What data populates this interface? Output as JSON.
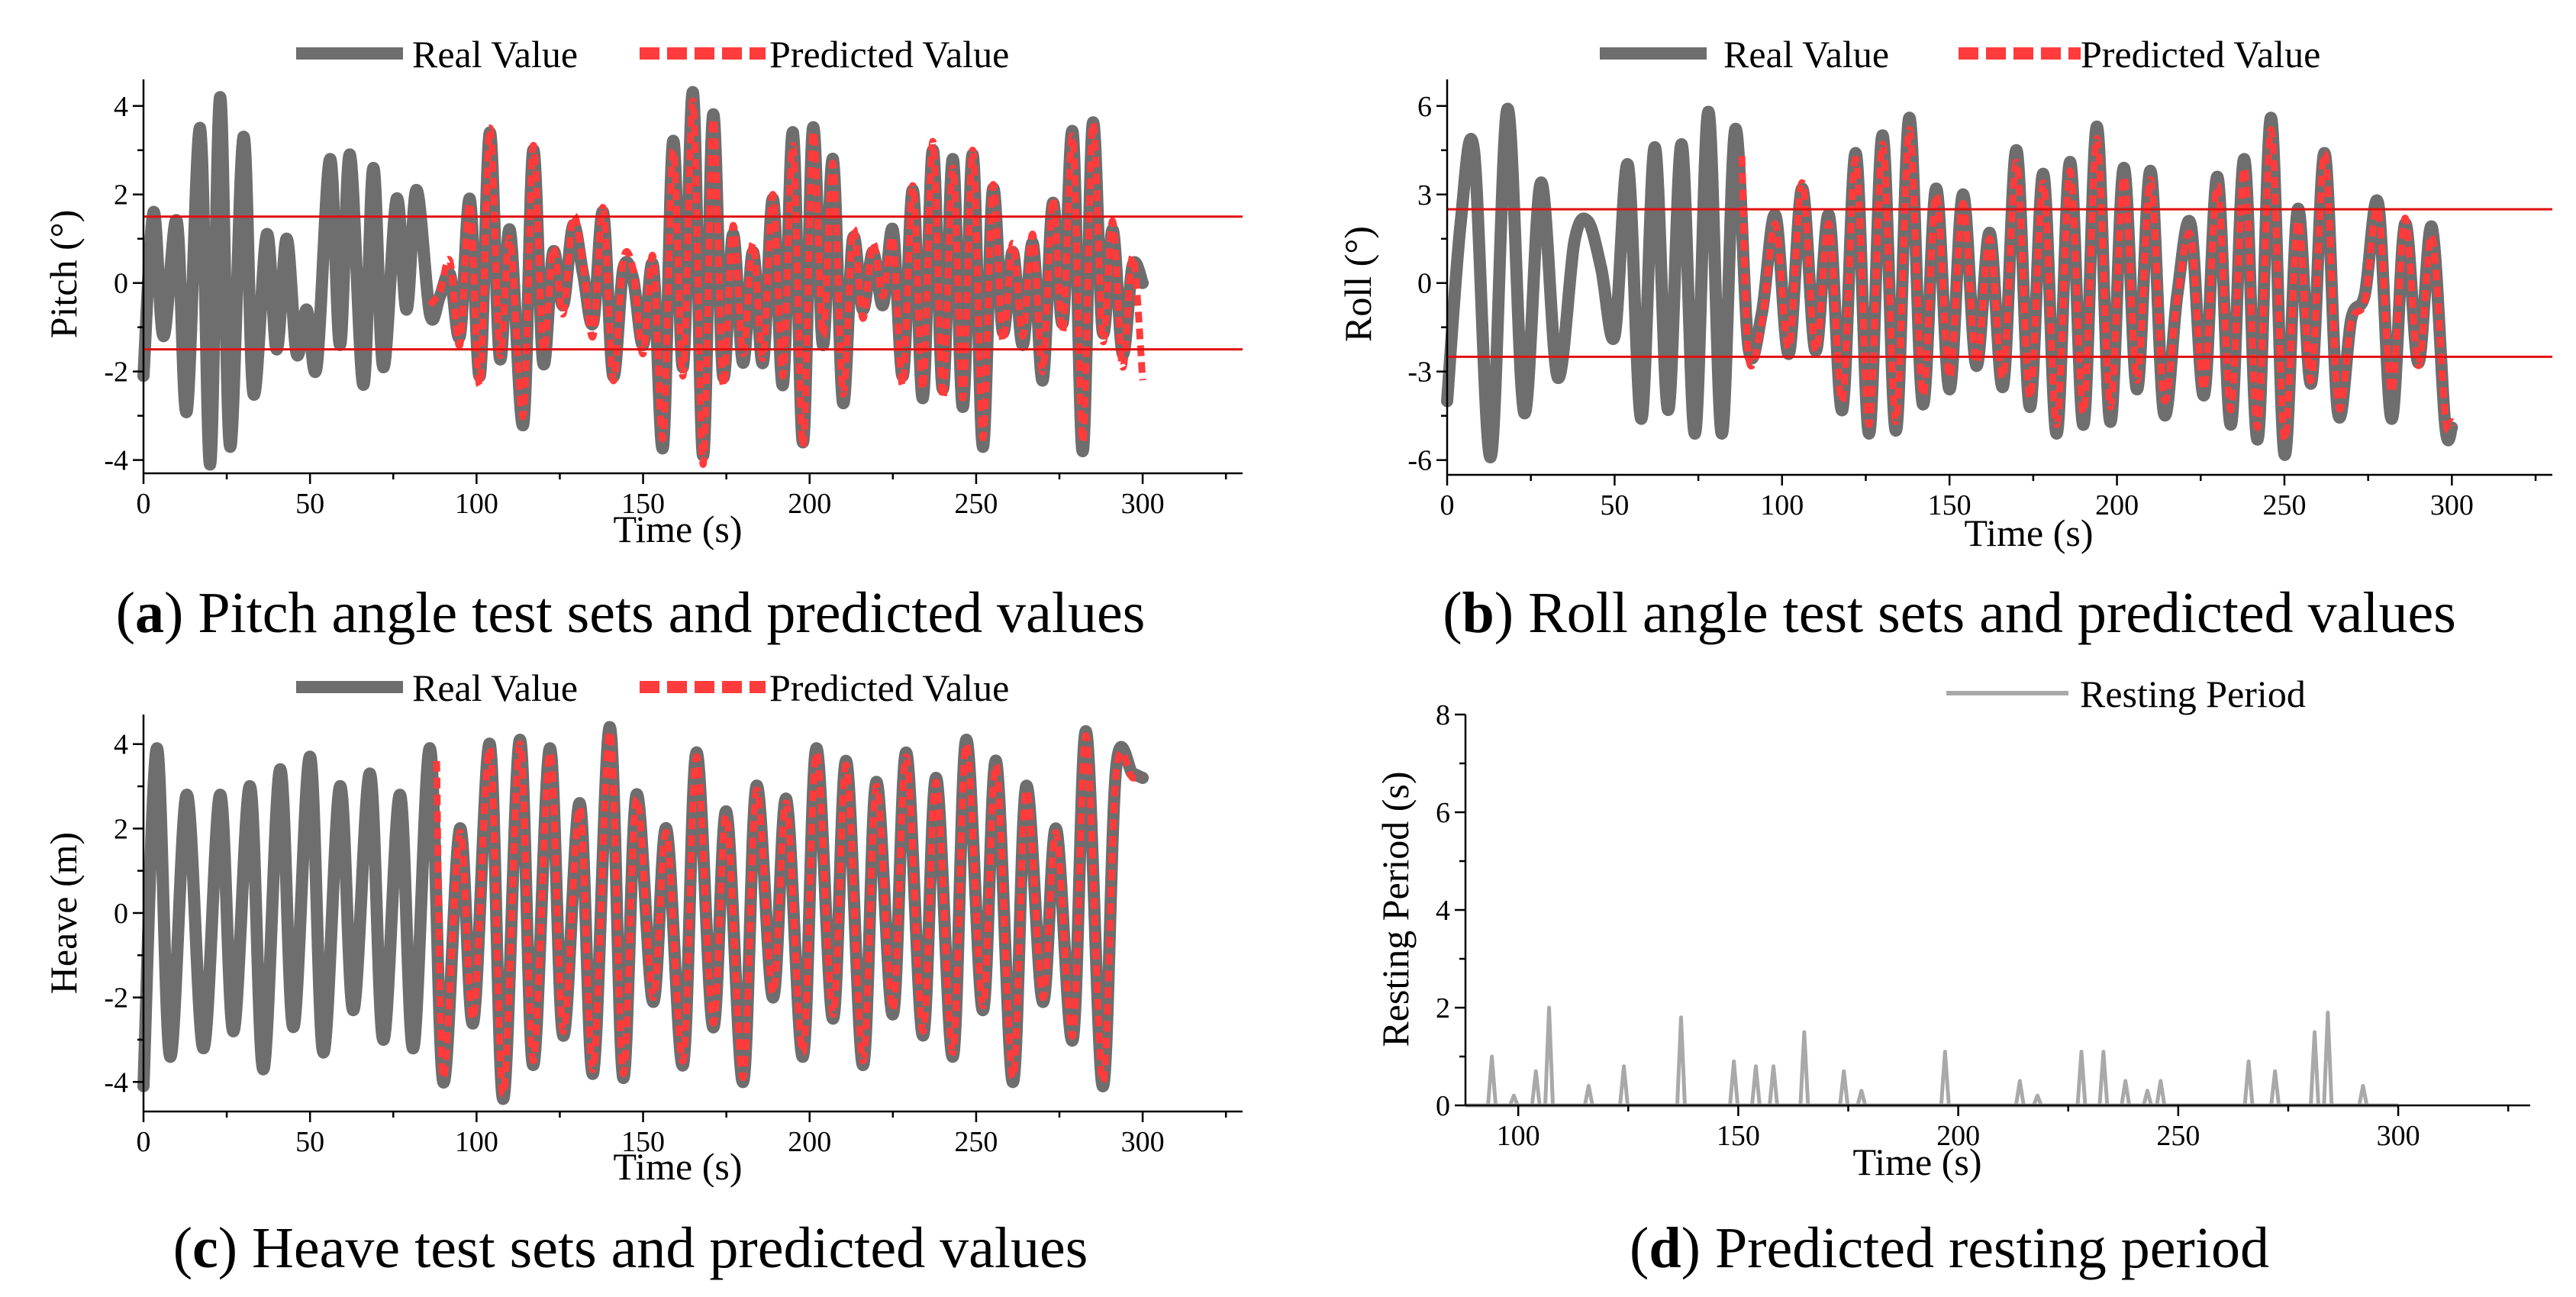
{
  "colors": {
    "real": "#6e6e6e",
    "pred": "#ff3b3b",
    "thresh": "#e01010",
    "rest": "#a9a9a9",
    "axis": "#000000"
  },
  "chart_data": [
    {
      "id": "pitch",
      "type": "line",
      "caption": {
        "letter": "a",
        "text": "Pitch angle test sets and predicted values"
      },
      "xlabel": "Time (s)",
      "ylabel": "Pitch (°)",
      "xlim": [
        0,
        330
      ],
      "ylim": [
        -4.3,
        4.6
      ],
      "xticks": [
        0,
        50,
        100,
        150,
        200,
        250,
        300
      ],
      "yticks": [
        -4,
        -2,
        0,
        2,
        4
      ],
      "thresholds": [
        1.5,
        -1.5
      ],
      "legend": [
        "Real Value",
        "Predicted Value"
      ],
      "pred_start": 85,
      "series": [
        {
          "name": "Real Value",
          "t": [
            0,
            3,
            6,
            10,
            13,
            17,
            20,
            23,
            26,
            30,
            33,
            37,
            40,
            43,
            46,
            49,
            52,
            56,
            59,
            62,
            66,
            69,
            72,
            76,
            79,
            82,
            86,
            89,
            92,
            95,
            98,
            101,
            104,
            107,
            110,
            114,
            117,
            120,
            123,
            126,
            129,
            132,
            135,
            138,
            141,
            144,
            147,
            150,
            153,
            156,
            159,
            162,
            165,
            168,
            171,
            174,
            177,
            180,
            183,
            186,
            189,
            192,
            195,
            198,
            201,
            204,
            207,
            210,
            213,
            216,
            219,
            222,
            225,
            228,
            231,
            234,
            237,
            240,
            243,
            246,
            249,
            252,
            255,
            258,
            261,
            264,
            267,
            270,
            273,
            276,
            279,
            282,
            285,
            288,
            291,
            294,
            297,
            300
          ],
          "v": [
            -2.1,
            1.6,
            -1.2,
            1.4,
            -2.9,
            3.5,
            -4.1,
            4.2,
            -3.7,
            3.3,
            -2.5,
            1.1,
            -1.5,
            1.0,
            -1.6,
            -0.6,
            -1.9,
            2.8,
            -1.4,
            2.9,
            -2.3,
            2.6,
            -1.9,
            1.9,
            -0.6,
            2.1,
            -0.7,
            -0.3,
            0.2,
            -1.2,
            1.9,
            -2.1,
            3.4,
            -1.7,
            1.2,
            -3.2,
            3.0,
            -1.8,
            0.7,
            -0.5,
            1.3,
            0.2,
            -0.9,
            1.6,
            -2.1,
            0.3,
            0.1,
            -1.4,
            0.4,
            -3.7,
            3.2,
            -1.9,
            4.3,
            -3.9,
            3.8,
            -2.1,
            1.1,
            -1.8,
            0.7,
            -1.8,
            1.9,
            -2.3,
            3.4,
            -3.6,
            3.5,
            -1.4,
            2.8,
            -2.7,
            1.0,
            -0.6,
            0.7,
            -0.5,
            1.2,
            -2.1,
            2.1,
            -2.6,
            3.0,
            -2.4,
            2.8,
            -2.8,
            2.9,
            -3.7,
            2.1,
            -1.1,
            0.7,
            -1.4,
            0.9,
            -2.2,
            1.8,
            -0.9,
            3.4,
            -3.8,
            3.6,
            -1.1,
            1.2,
            -1.6,
            0.4,
            0.0
          ]
        },
        {
          "name": "Predicted Value",
          "t": [
            86,
            89,
            92,
            95,
            98,
            101,
            104,
            107,
            110,
            114,
            117,
            120,
            123,
            126,
            129,
            132,
            135,
            138,
            141,
            144,
            147,
            150,
            153,
            156,
            159,
            162,
            165,
            168,
            171,
            174,
            177,
            180,
            183,
            186,
            189,
            192,
            195,
            198,
            201,
            204,
            207,
            210,
            213,
            216,
            219,
            222,
            225,
            228,
            231,
            234,
            237,
            240,
            243,
            246,
            249,
            252,
            255,
            258,
            261,
            264,
            267,
            270,
            273,
            276,
            279,
            282,
            285,
            288,
            291,
            294,
            297,
            300
          ],
          "v": [
            -0.5,
            -0.2,
            0.5,
            -1.4,
            1.8,
            -2.3,
            3.5,
            -1.6,
            1.0,
            -3.0,
            3.1,
            -1.5,
            0.8,
            -0.7,
            1.5,
            0.4,
            -1.2,
            1.7,
            -2.2,
            0.5,
            0.3,
            -1.6,
            0.6,
            -3.5,
            3.0,
            -2.1,
            4.1,
            -4.1,
            3.7,
            -2.3,
            1.3,
            -1.6,
            0.9,
            -1.7,
            2.0,
            -2.1,
            3.1,
            -3.7,
            3.4,
            -1.2,
            2.7,
            -2.5,
            1.2,
            -0.8,
            0.9,
            -0.3,
            1.0,
            -2.3,
            2.2,
            -2.4,
            3.2,
            -2.6,
            2.6,
            -2.6,
            3.0,
            -3.5,
            2.2,
            -1.3,
            0.9,
            -1.2,
            1.1,
            -2.0,
            1.9,
            -1.1,
            3.3,
            -3.6,
            3.6,
            -1.3,
            1.4,
            -1.9,
            0.6,
            -2.2
          ]
        }
      ]
    },
    {
      "id": "roll",
      "type": "line",
      "caption": {
        "letter": "b",
        "text": "Roll angle test sets and predicted values"
      },
      "xlabel": "Time (s)",
      "ylabel": "Roll (°)",
      "xlim": [
        0,
        330
      ],
      "ylim": [
        -6.5,
        6.9
      ],
      "xticks": [
        0,
        50,
        100,
        150,
        200,
        250,
        300
      ],
      "yticks": [
        -6,
        -3,
        0,
        3,
        6
      ],
      "thresholds": [
        2.5,
        -2.5
      ],
      "legend": [
        "Real Value",
        "Predicted Value"
      ],
      "pred_start": 88,
      "series": [
        {
          "name": "Real Value",
          "t": [
            0,
            4,
            8,
            13,
            18,
            23,
            28,
            33,
            38,
            42,
            46,
            50,
            54,
            58,
            62,
            66,
            70,
            74,
            78,
            82,
            86,
            90,
            94,
            98,
            102,
            106,
            110,
            114,
            118,
            122,
            126,
            130,
            134,
            138,
            142,
            146,
            150,
            154,
            158,
            162,
            166,
            170,
            174,
            178,
            182,
            186,
            190,
            194,
            198,
            202,
            206,
            210,
            214,
            218,
            222,
            226,
            230,
            234,
            238,
            242,
            246,
            250,
            254,
            258,
            262,
            266,
            270,
            274,
            278,
            282,
            286,
            290,
            294,
            298,
            300
          ],
          "v": [
            -4.0,
            2.0,
            4.5,
            -5.9,
            5.9,
            -4.4,
            3.4,
            -3.2,
            1.4,
            2.1,
            0.5,
            -1.8,
            4.0,
            -4.6,
            4.6,
            -4.3,
            4.7,
            -5.1,
            5.8,
            -5.1,
            5.2,
            -2.2,
            -1.0,
            2.3,
            -2.4,
            3.2,
            -2.3,
            2.3,
            -4.3,
            4.4,
            -5.1,
            5.0,
            -5.0,
            5.6,
            -4.1,
            3.2,
            -3.6,
            3.0,
            -2.8,
            1.7,
            -3.5,
            4.5,
            -4.2,
            3.7,
            -5.1,
            4.1,
            -4.8,
            5.3,
            -4.7,
            3.9,
            -3.6,
            3.8,
            -4.4,
            -0.4,
            2.0,
            -3.8,
            3.6,
            -4.8,
            4.2,
            -5.3,
            5.6,
            -5.8,
            2.5,
            -3.4,
            4.4,
            -4.4,
            -1.2,
            -0.4,
            2.7,
            -4.6,
            2.0,
            -2.7,
            1.9,
            -4.8,
            -4.9
          ]
        },
        {
          "name": "Predicted Value",
          "t": [
            88,
            90,
            94,
            98,
            102,
            106,
            110,
            114,
            118,
            122,
            126,
            130,
            134,
            138,
            142,
            146,
            150,
            154,
            158,
            162,
            166,
            170,
            174,
            178,
            182,
            186,
            190,
            194,
            198,
            202,
            206,
            210,
            214,
            218,
            222,
            226,
            230,
            234,
            238,
            242,
            246,
            250,
            254,
            258,
            262,
            266,
            270,
            274,
            278,
            282,
            286,
            290,
            294,
            298,
            300
          ],
          "v": [
            4.3,
            -2.5,
            -1.3,
            2.0,
            -2.2,
            3.4,
            -2.3,
            2.0,
            -4.0,
            4.2,
            -4.8,
            4.7,
            -4.7,
            5.2,
            -3.8,
            3.0,
            -3.2,
            2.7,
            -2.7,
            1.5,
            -3.2,
            4.1,
            -3.9,
            3.4,
            -4.8,
            3.8,
            -4.4,
            4.9,
            -4.2,
            3.6,
            -3.3,
            3.5,
            -3.9,
            -0.5,
            1.6,
            -3.6,
            3.3,
            -4.3,
            3.9,
            -4.9,
            5.2,
            -5.3,
            2.1,
            -3.3,
            4.4,
            -4.1,
            -1.3,
            -0.6,
            2.5,
            -3.7,
            2.2,
            -2.8,
            1.6,
            -4.5,
            -4.7
          ]
        }
      ]
    },
    {
      "id": "heave",
      "type": "line",
      "caption": {
        "letter": "c",
        "text": "Heave test sets and predicted values"
      },
      "xlabel": "Time (s)",
      "ylabel": "Heave (m)",
      "xlim": [
        0,
        330
      ],
      "ylim": [
        -4.7,
        4.7
      ],
      "xticks": [
        0,
        50,
        100,
        150,
        200,
        250,
        300
      ],
      "yticks": [
        -4,
        -2,
        0,
        2,
        4
      ],
      "legend": [
        "Real Value",
        "Predicted Value"
      ],
      "pred_start": 87,
      "series": [
        {
          "name": "Real Value",
          "t": [
            0,
            4,
            8,
            13,
            18,
            23,
            27,
            32,
            36,
            41,
            45,
            50,
            54,
            59,
            63,
            68,
            72,
            77,
            81,
            86,
            90,
            95,
            99,
            104,
            108,
            113,
            117,
            122,
            126,
            131,
            135,
            140,
            144,
            148,
            153,
            157,
            162,
            166,
            171,
            175,
            180,
            184,
            189,
            193,
            198,
            202,
            207,
            211,
            216,
            220,
            225,
            229,
            234,
            238,
            243,
            247,
            252,
            256,
            261,
            265,
            270,
            274,
            279,
            283,
            288,
            292,
            297,
            300
          ],
          "v": [
            -4.1,
            3.9,
            -3.4,
            2.8,
            -3.2,
            2.8,
            -2.8,
            3.0,
            -3.7,
            3.4,
            -2.7,
            3.7,
            -3.3,
            3.0,
            -2.3,
            3.3,
            -3.0,
            2.8,
            -3.2,
            3.9,
            -4.0,
            2.0,
            -2.6,
            4.0,
            -4.4,
            4.1,
            -3.6,
            3.9,
            -2.9,
            2.6,
            -3.8,
            4.4,
            -3.9,
            2.8,
            -2.1,
            2.0,
            -3.6,
            3.8,
            -2.7,
            2.4,
            -4.0,
            3.0,
            -2.0,
            2.7,
            -3.4,
            3.9,
            -2.5,
            3.6,
            -3.6,
            3.1,
            -2.4,
            3.8,
            -2.9,
            3.2,
            -3.4,
            4.1,
            -2.3,
            3.6,
            -4.0,
            3.0,
            -2.1,
            2.0,
            -3.0,
            4.3,
            -4.1,
            3.4,
            3.3,
            3.2
          ]
        },
        {
          "name": "Predicted Value",
          "t": [
            88,
            90,
            95,
            99,
            104,
            108,
            113,
            117,
            122,
            126,
            131,
            135,
            140,
            144,
            148,
            153,
            157,
            162,
            166,
            171,
            175,
            180,
            184,
            189,
            193,
            198,
            202,
            207,
            211,
            216,
            220,
            225,
            229,
            234,
            238,
            243,
            247,
            252,
            256,
            261,
            265,
            270,
            274,
            279,
            283,
            288,
            292,
            297,
            300
          ],
          "v": [
            3.6,
            -3.9,
            1.9,
            -2.5,
            3.9,
            -4.3,
            4.0,
            -3.5,
            3.8,
            -2.8,
            2.5,
            -3.7,
            4.3,
            -3.8,
            2.7,
            -2.0,
            1.9,
            -3.5,
            3.7,
            -2.6,
            2.3,
            -3.9,
            2.9,
            -1.9,
            2.6,
            -3.3,
            3.8,
            -2.4,
            3.5,
            -3.5,
            3.0,
            -2.3,
            3.7,
            -2.8,
            3.1,
            -3.3,
            4.0,
            -2.2,
            3.5,
            -3.9,
            2.9,
            -2.0,
            1.9,
            -2.9,
            4.2,
            -4.0,
            3.3,
            3.2,
            3.2
          ]
        }
      ]
    },
    {
      "id": "resting",
      "type": "line",
      "caption": {
        "letter": "d",
        "text": "Predicted resting period"
      },
      "xlabel": "Time (s)",
      "ylabel": "Resting Period (s)",
      "xlim": [
        88,
        330
      ],
      "ylim": [
        0,
        8
      ],
      "xticks": [
        100,
        150,
        200,
        250,
        300
      ],
      "yticks": [
        0,
        2,
        4,
        6,
        8
      ],
      "legend": [
        "Resting Period"
      ],
      "series": [
        {
          "name": "Resting Period",
          "peaks": [
            [
              94,
              1.0
            ],
            [
              99,
              0.2
            ],
            [
              104,
              0.7
            ],
            [
              107,
              2.0
            ],
            [
              116,
              0.4
            ],
            [
              124,
              0.8
            ],
            [
              137,
              1.8
            ],
            [
              149,
              0.9
            ],
            [
              154,
              0.8
            ],
            [
              158,
              0.8
            ],
            [
              165,
              1.5
            ],
            [
              174,
              0.7
            ],
            [
              178,
              0.3
            ],
            [
              197,
              1.1
            ],
            [
              214,
              0.5
            ],
            [
              218,
              0.2
            ],
            [
              228,
              1.1
            ],
            [
              233,
              1.1
            ],
            [
              238,
              0.5
            ],
            [
              243,
              0.3
            ],
            [
              246,
              0.5
            ],
            [
              266,
              0.9
            ],
            [
              272,
              0.7
            ],
            [
              281,
              1.5
            ],
            [
              284,
              1.9
            ],
            [
              292,
              0.4
            ]
          ]
        }
      ]
    }
  ]
}
